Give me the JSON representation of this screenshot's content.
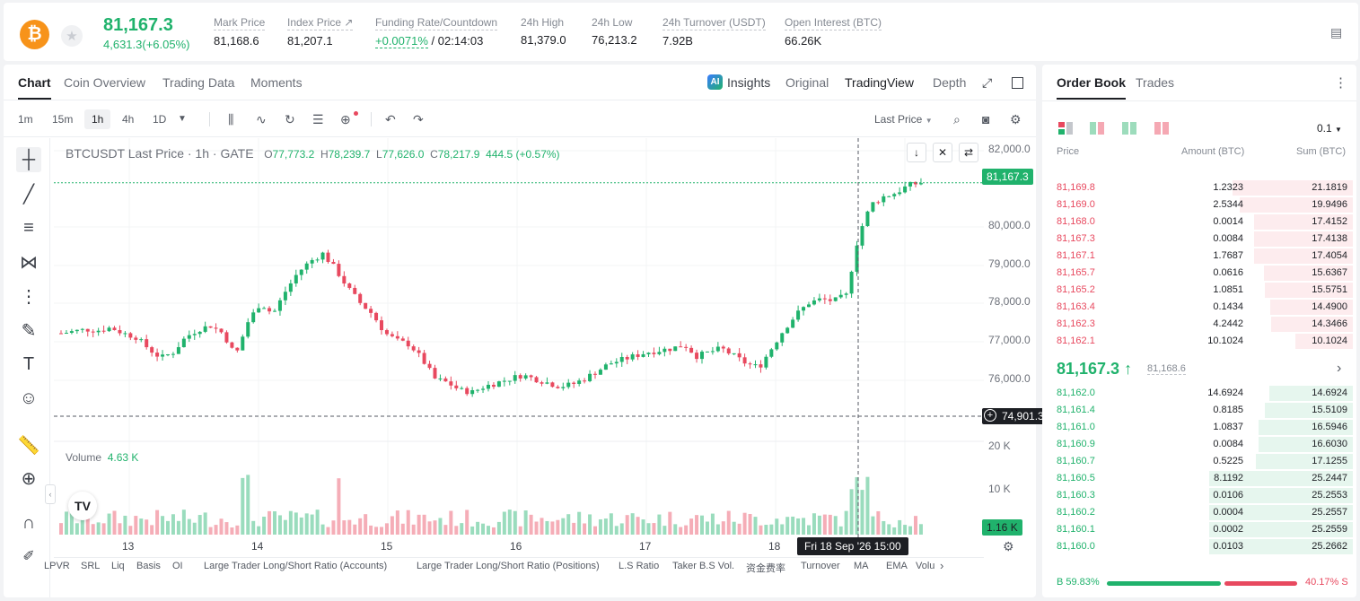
{
  "ticker": {
    "coin_glyph": "₿",
    "last_price": "81,167.3",
    "change": "4,631.3(+6.05%)",
    "stats": [
      {
        "label": "Mark Price",
        "value": "81,168.6"
      },
      {
        "label": "Index Price ↗",
        "value": "81,207.1"
      },
      {
        "label": "Funding Rate/Countdown",
        "value": "+0.0071%",
        "value2": " / 02:14:03"
      },
      {
        "label": "24h High",
        "value": "81,379.0"
      },
      {
        "label": "24h Low",
        "value": "76,213.2"
      },
      {
        "label": "24h Turnover (USDT)",
        "value": "7.92B"
      },
      {
        "label": "Open Interest (BTC)",
        "value": "66.26K"
      }
    ]
  },
  "chart_tabs": [
    "Chart",
    "Coin Overview",
    "Trading Data",
    "Moments"
  ],
  "chart_right_tabs": [
    "Insights",
    "Original",
    "TradingView",
    "Depth"
  ],
  "timeframes": [
    "1m",
    "15m",
    "1h",
    "4h",
    "1D"
  ],
  "price_type": "Last Price",
  "ohlc": {
    "symbol": "BTCUSDT Last Price · 1h · GATE",
    "o_label": "O",
    "o": "77,773.2",
    "h_label": "H",
    "h": "78,239.7",
    "l_label": "L",
    "l": "77,626.0",
    "c_label": "C",
    "c": "78,217.9",
    "chg": "444.5 (+0.57%)"
  },
  "volume": {
    "label": "Volume",
    "value": "4.63 K"
  },
  "price_box": "81,167.3",
  "cross_box": "74,901.3",
  "vol_box": "1.16 K",
  "crosshair_date": "Fri 18 Sep '26   15:00",
  "chart_data": {
    "type": "line",
    "ylim": [
      74400,
      82200
    ],
    "y_ticks": [
      "82,000.0",
      "80,000.0",
      "79,000.0",
      "78,000.0",
      "77,000.0",
      "76,000.0"
    ],
    "vol_ticks": [
      "20 K",
      "10 K"
    ],
    "x_ticks": [
      "13",
      "14",
      "15",
      "16",
      "17",
      "18"
    ],
    "series": [
      {
        "values": [
          77200,
          77250,
          77300,
          77280,
          77350,
          77200,
          77100,
          76800,
          76550,
          76700,
          77100,
          77300,
          77400,
          77200,
          76600,
          77500,
          78000,
          77700,
          78300,
          78800,
          79100,
          79300,
          78900,
          78400,
          78000,
          77700,
          77200,
          77000,
          76900,
          76500,
          76000,
          75900,
          75700,
          75650,
          75800,
          75900,
          76000,
          76100,
          76000,
          75900,
          75800,
          75850,
          76000,
          76200,
          76400,
          76500,
          76600,
          76700,
          76750,
          76800,
          76900,
          76600,
          76700,
          76800,
          76600,
          76400,
          76300,
          76800,
          77300,
          77700,
          78000,
          78100,
          78050,
          78200,
          79800,
          80600,
          80800,
          80900,
          81100,
          81167
        ]
      }
    ]
  },
  "orderbook": {
    "tabs": [
      "Order Book",
      "Trades"
    ],
    "precision": "0.1",
    "headers": [
      "Price",
      "Amount (BTC)",
      "Sum (BTC)"
    ],
    "asks": [
      {
        "p": "81,169.8",
        "a": "1.2323",
        "s": "21.1819"
      },
      {
        "p": "81,169.0",
        "a": "2.5344",
        "s": "19.9496"
      },
      {
        "p": "81,168.0",
        "a": "0.0014",
        "s": "17.4152"
      },
      {
        "p": "81,167.3",
        "a": "0.0084",
        "s": "17.4138"
      },
      {
        "p": "81,167.1",
        "a": "1.7687",
        "s": "17.4054"
      },
      {
        "p": "81,165.7",
        "a": "0.0616",
        "s": "15.6367"
      },
      {
        "p": "81,165.2",
        "a": "1.0851",
        "s": "15.5751"
      },
      {
        "p": "81,163.4",
        "a": "0.1434",
        "s": "14.4900"
      },
      {
        "p": "81,162.3",
        "a": "4.2442",
        "s": "14.3466"
      },
      {
        "p": "81,162.1",
        "a": "10.1024",
        "s": "10.1024"
      }
    ],
    "mid_price": "81,167.3 ↑",
    "mark": "81,168.6",
    "bids": [
      {
        "p": "81,162.0",
        "a": "14.6924",
        "s": "14.6924"
      },
      {
        "p": "81,161.4",
        "a": "0.8185",
        "s": "15.5109"
      },
      {
        "p": "81,161.0",
        "a": "1.0837",
        "s": "16.5946"
      },
      {
        "p": "81,160.9",
        "a": "0.0084",
        "s": "16.6030"
      },
      {
        "p": "81,160.7",
        "a": "0.5225",
        "s": "17.1255"
      },
      {
        "p": "81,160.5",
        "a": "8.1192",
        "s": "25.2447"
      },
      {
        "p": "81,160.3",
        "a": "0.0106",
        "s": "25.2553"
      },
      {
        "p": "81,160.2",
        "a": "0.0004",
        "s": "25.2557"
      },
      {
        "p": "81,160.1",
        "a": "0.0002",
        "s": "25.2559"
      },
      {
        "p": "81,160.0",
        "a": "0.0103",
        "s": "25.2662"
      }
    ],
    "buy_ratio": "B 59.83%",
    "sell_ratio": "40.17% S"
  },
  "indicators": [
    "LPVR",
    "SRL",
    "Liq",
    "Basis",
    "OI",
    "Large Trader Long/Short Ratio (Accounts)",
    "Large Trader Long/Short Ratio (Positions)",
    "L.S Ratio",
    "Taker B.S Vol.",
    "资金费率",
    "Turnover",
    "MA",
    "EMA",
    "Volu"
  ],
  "colors": {
    "up": "#20b26c",
    "down": "#e8495f"
  }
}
